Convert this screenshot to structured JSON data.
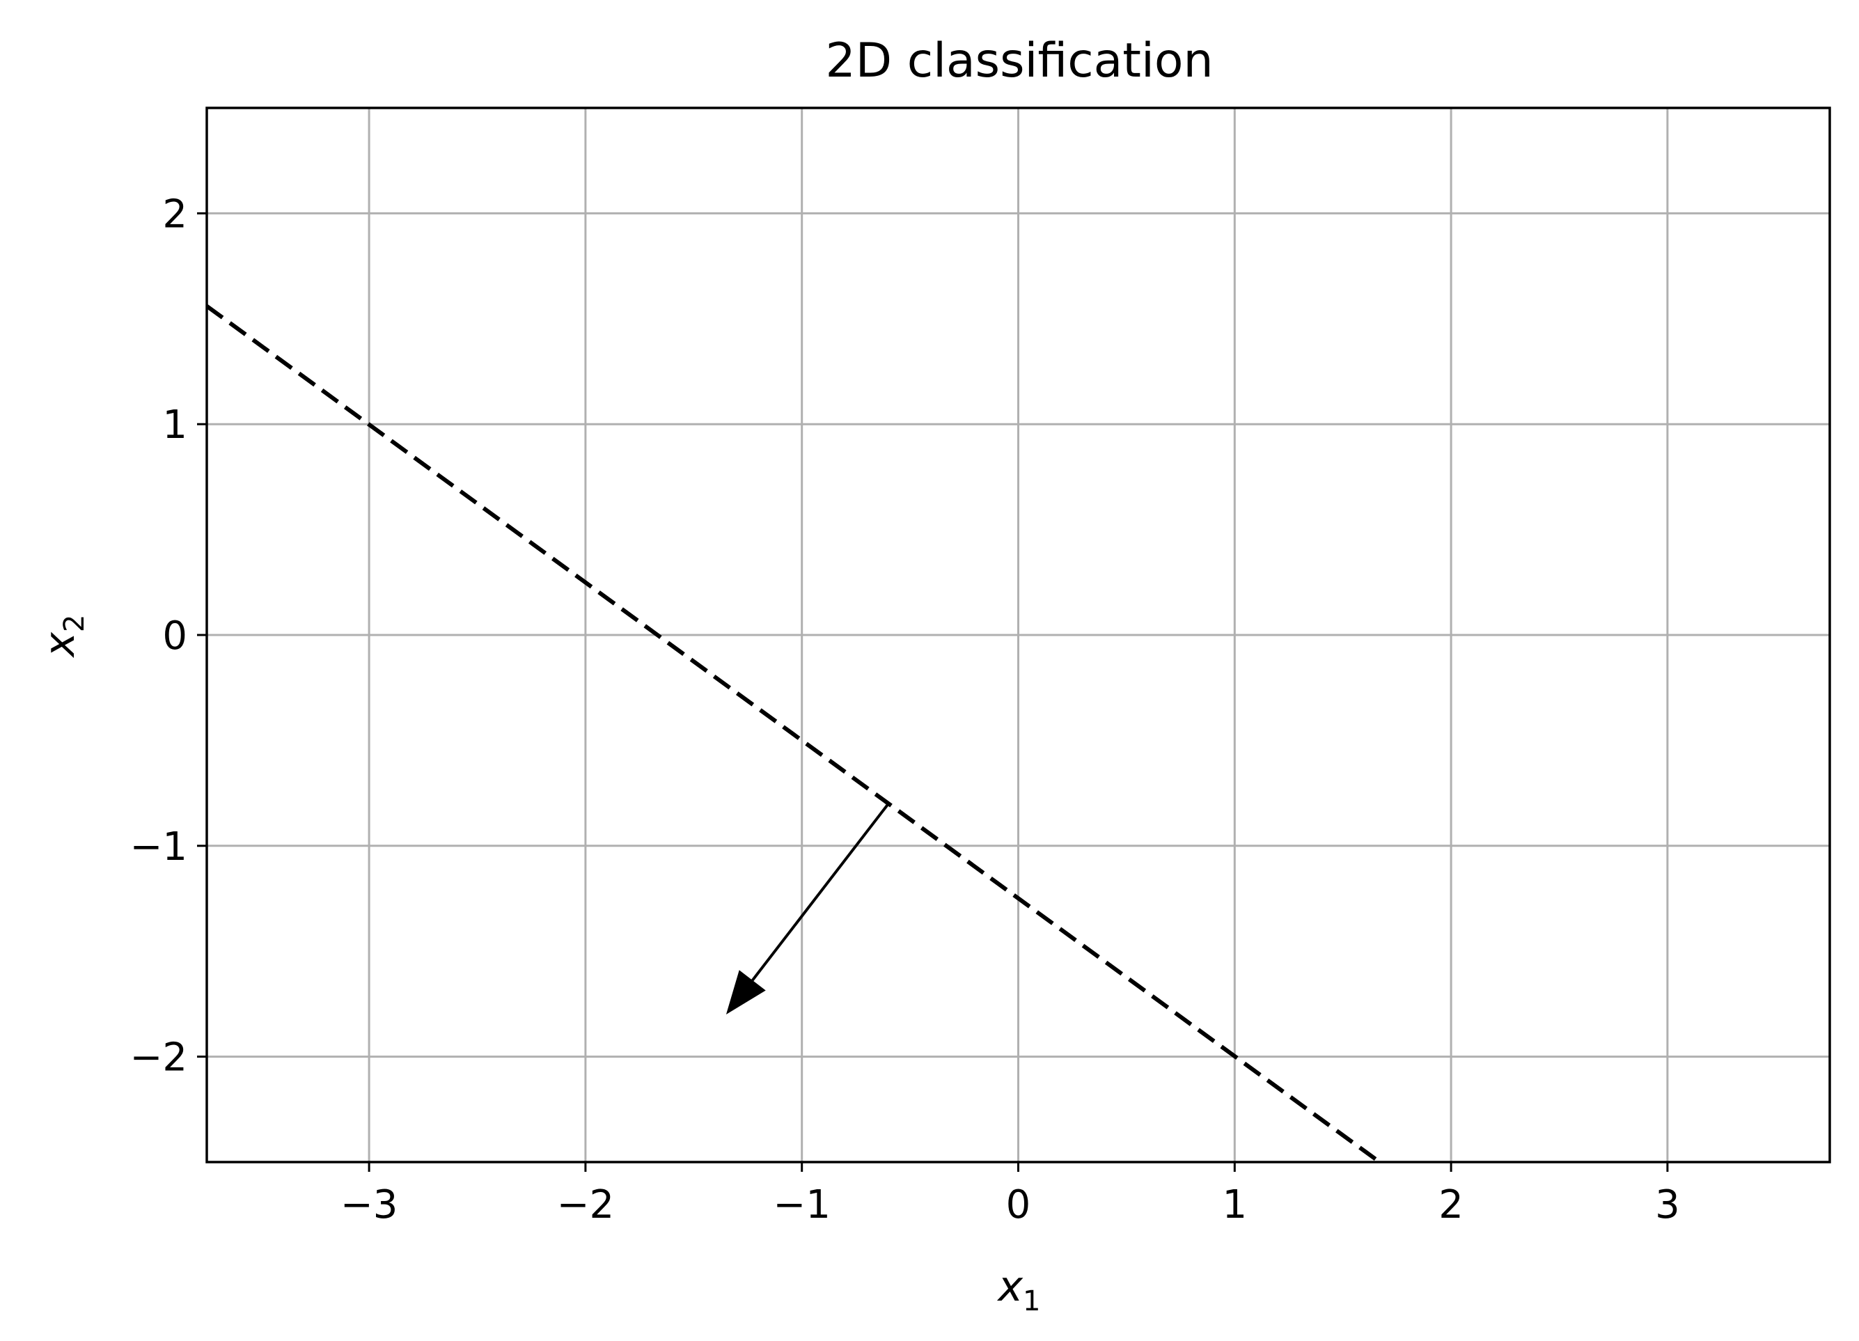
{
  "chart_data": {
    "type": "line",
    "title": "2D classification",
    "xlabel": {
      "var": "x",
      "sub": "1"
    },
    "ylabel": {
      "var": "x",
      "sub": "2"
    },
    "xlim": [
      -3.75,
      3.75
    ],
    "ylim": [
      -2.5,
      2.5
    ],
    "xticks": [
      -3,
      -2,
      -1,
      0,
      1,
      2,
      3
    ],
    "xtick_labels": [
      "−3",
      "−2",
      "−1",
      "0",
      "1",
      "2",
      "3"
    ],
    "yticks": [
      -2,
      -1,
      0,
      1,
      2
    ],
    "ytick_labels": [
      "−2",
      "−1",
      "0",
      "1",
      "2"
    ],
    "grid": true,
    "series": [
      {
        "style": "dashed",
        "color": "#000000",
        "x": [
          -3.75,
          1.67
        ],
        "y": [
          1.56,
          -2.5
        ]
      }
    ],
    "annotations": [
      {
        "type": "arrow",
        "from": [
          -0.6,
          -0.8
        ],
        "to": [
          -1.35,
          -1.8
        ],
        "color": "#000000"
      }
    ],
    "colors": {
      "grid": "#b0b0b0",
      "axes": "#000000",
      "background": "#ffffff"
    }
  }
}
